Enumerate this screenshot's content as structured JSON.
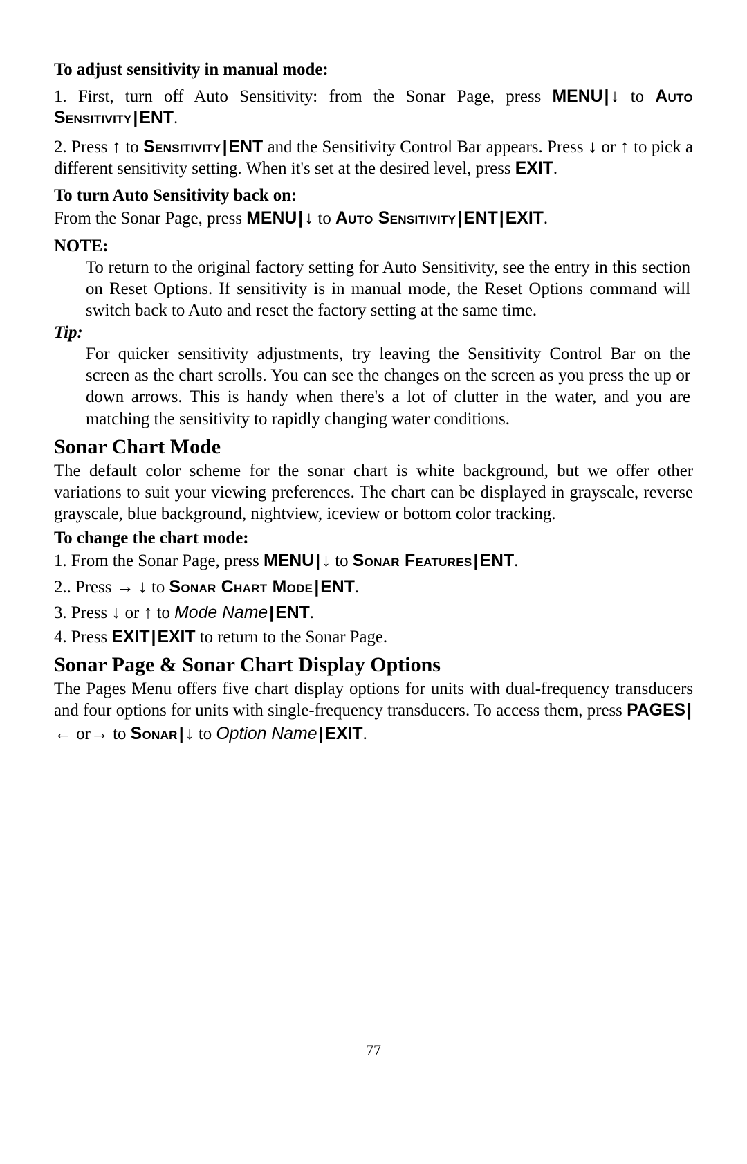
{
  "section1": {
    "heading": "To adjust sensitivity in manual mode:",
    "step1_a": "1. First, turn off Auto Sensitivity: from the Sonar Page, press ",
    "menu": "MENU",
    "to": "to ",
    "auto_sens": "Auto Sensitivity",
    "ent": "ENT",
    "period": ".",
    "step2_a": "2. Press ",
    "step2_b": " to ",
    "sensitivity": "Sensitivity",
    "step2_c": " and the Sensitivity Control Bar appears. Press ",
    "step2_d": " or ",
    "step2_e": " to pick a different sensitivity setting. When it's set at the desired level, press ",
    "exit": "EXIT"
  },
  "section2": {
    "heading": "To turn Auto Sensitivity back on:",
    "line_a": "From the Sonar Page, press "
  },
  "note": {
    "label": "NOTE:",
    "body": "To return to the original factory setting for Auto Sensitivity, see the entry in this section on Reset Options. If sensitivity is in manual mode, the Reset Options command will switch back to Auto and reset the factory setting at the same time."
  },
  "tip": {
    "label": "Tip:",
    "body": "For quicker sensitivity adjustments, try leaving the Sensitivity Control Bar on the screen as the chart scrolls. You can see the changes on the screen as you press the up or down arrows. This is handy when there's a lot of clutter in the water, and you are matching the sensitivity to rapidly changing water conditions."
  },
  "chartmode": {
    "heading": "Sonar Chart Mode",
    "body": "The default color scheme for the sonar chart is white background, but we offer other variations to suit your viewing preferences. The chart can be displayed in grayscale, reverse grayscale, blue background, nightview, iceview or bottom color tracking.",
    "sub": "To change the chart mode:",
    "s1_a": "1. From the Sonar Page, press ",
    "sonar_features": "Sonar Features",
    "s2_a": "2.. Press ",
    "sonar_chart_mode": "Sonar Chart Mode",
    "s3_a": "3. Press ",
    "mode_name": "Mode Name",
    "s4_a": "4. Press ",
    "s4_b": " to return to the Sonar Page."
  },
  "display": {
    "heading": "Sonar Page & Sonar Chart Display Options",
    "body_a": "The Pages Menu offers five chart display options for units with dual-frequency transducers and four options for units with single-frequency transducers. To access them, press ",
    "pages": "PAGES",
    "or": " or",
    "sonar": "Sonar",
    "option_name": "Option Name"
  },
  "arrows": {
    "up": "↑",
    "down": "↓",
    "left": "←",
    "right": "→"
  },
  "pipe": "|",
  "pagenum": "77"
}
